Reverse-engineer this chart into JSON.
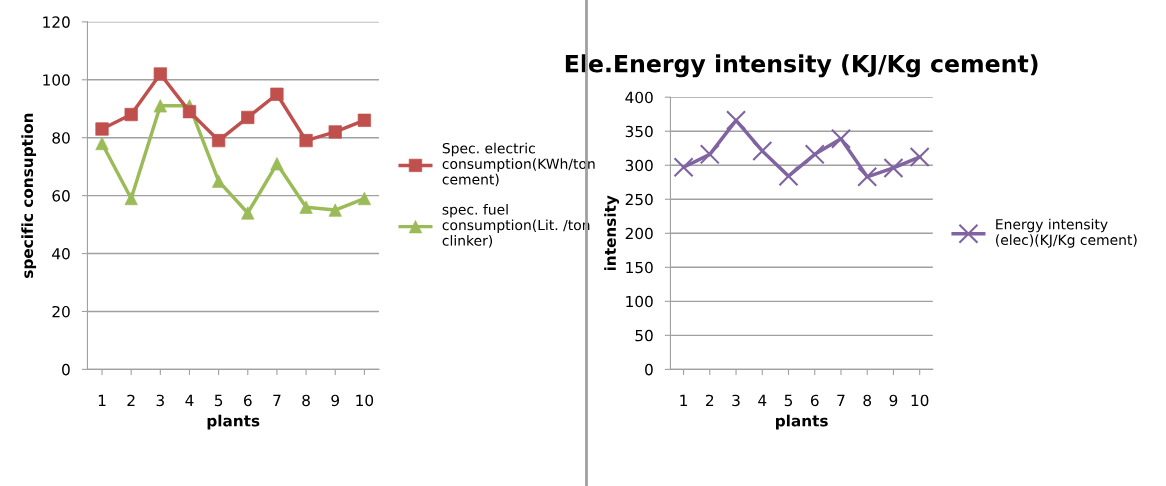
{
  "chart_data": [
    {
      "type": "line",
      "xlabel": "plants",
      "ylabel": "specific consuption",
      "categories": [
        "1",
        "2",
        "3",
        "4",
        "5",
        "6",
        "7",
        "8",
        "9",
        "10"
      ],
      "series": [
        {
          "name": "Spec. electric consumption(KWh/ton cement)",
          "color": "#c0504d",
          "marker": "square",
          "values": [
            83,
            88,
            102,
            89,
            79,
            87,
            95,
            79,
            82,
            86
          ]
        },
        {
          "name": "spec. fuel consumption(Lit. /ton clinker)",
          "color": "#9bbb59",
          "marker": "triangle",
          "values": [
            78,
            59,
            91,
            91,
            65,
            54,
            71,
            56,
            55,
            59
          ]
        }
      ],
      "ylim": [
        0,
        120
      ],
      "yticks": [
        0,
        20,
        40,
        60,
        80,
        100,
        120
      ],
      "grid": "y",
      "legend": "right"
    },
    {
      "type": "line",
      "title": "Ele.Energy intensity (KJ/Kg cement)",
      "xlabel": "plants",
      "ylabel": "intensity",
      "categories": [
        "1",
        "2",
        "3",
        "4",
        "5",
        "6",
        "7",
        "8",
        "9",
        "10"
      ],
      "series": [
        {
          "name": "Energy intensity (elec)(KJ/Kg cement)",
          "color": "#8064a2",
          "marker": "cross",
          "values": [
            297,
            316,
            366,
            321,
            284,
            316,
            339,
            283,
            296,
            312
          ]
        }
      ],
      "ylim": [
        0,
        400
      ],
      "yticks": [
        0,
        50,
        100,
        150,
        200,
        250,
        300,
        350,
        400
      ],
      "grid": "y",
      "legend": "right"
    }
  ]
}
